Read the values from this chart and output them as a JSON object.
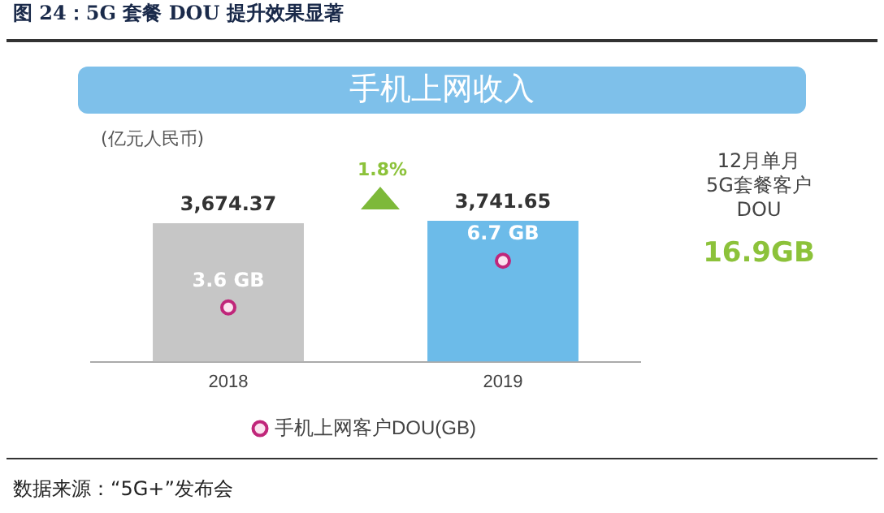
{
  "chart_data": {
    "type": "bar",
    "title": "图 24：5G 套餐 DOU 提升效果显著",
    "subtitle": "手机上网收入",
    "ylabel": "(亿元人民币)",
    "categories": [
      "2018",
      "2019"
    ],
    "series": [
      {
        "colors": [
          "#c6c6c6",
          "#6cbbe9"
        ],
        "values": [
          3674.37,
          3741.65
        ],
        "value_labels": [
          "3,674.37",
          "3,741.65"
        ]
      },
      {
        "type": "scatter",
        "axis": "y2",
        "name": "手机上网客户DOU(GB)",
        "color": "#c0267a",
        "values": [
          3.6,
          6.7
        ],
        "value_labels": [
          "3.6 GB",
          "6.7 GB"
        ]
      }
    ],
    "annotations": [
      "1.8%",
      "12月单月\n5G套餐客户\nDOU",
      "16.9GB",
      "数据来源：“5G+”发布会"
    ],
    "legend": "bottom",
    "marker": "circle"
  }
}
